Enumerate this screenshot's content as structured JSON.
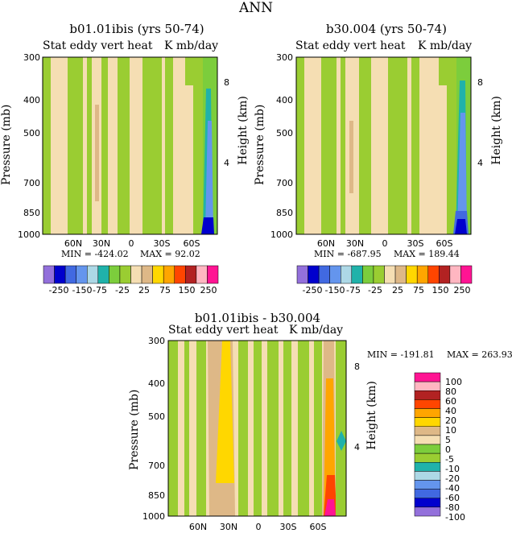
{
  "title": "ANN",
  "panels": [
    {
      "title": "b01.01ibis (yrs 50-74)",
      "subtitle_left": "Stat eddy vert heat",
      "subtitle_right": "K mb/day",
      "ylabel": "Pressure (mb)",
      "y2label": "Height (km)",
      "min_label": "MIN = -424.02",
      "max_label": "MAX = 92.02"
    },
    {
      "title": "b30.004 (yrs 50-74)",
      "subtitle_left": "Stat eddy vert heat",
      "subtitle_right": "K mb/day",
      "ylabel": "Pressure (mb)",
      "y2label": "Height (km)",
      "min_label": "MIN = -687.95",
      "max_label": "MAX = 189.44"
    },
    {
      "title": "b01.01ibis - b30.004",
      "subtitle_left": "Stat eddy vert heat",
      "subtitle_right": "K mb/day",
      "ylabel": "Pressure (mb)",
      "y2label": "Height (km)",
      "min_label": "MIN = -191.81",
      "max_label": "MAX = 263.93"
    }
  ],
  "chart_data": [
    {
      "type": "heatmap",
      "title": "b01.01ibis (yrs 50-74)",
      "subtitle": "Stat eddy vert heat K mb/day",
      "ylabel": "Pressure (mb)",
      "y2label": "Height (km)",
      "x_ticks": [
        "60N",
        "30N",
        "0",
        "30S",
        "60S"
      ],
      "y_ticks": [
        "300",
        "400",
        "500",
        "700",
        "850",
        "1000"
      ],
      "y2_ticks": [
        "8",
        "4"
      ],
      "min": -424.02,
      "max": 92.02,
      "colorbar": {
        "levels": [
          "-250",
          "-150",
          "-75",
          "-25",
          "25",
          "75",
          "150",
          "250"
        ],
        "colors": [
          "#9370db",
          "#0000cd",
          "#4169e1",
          "#6495ed",
          "#add8e6",
          "#20b2aa",
          "#7ccd3c",
          "#9acd32",
          "#f5deb3",
          "#deb887",
          "#ffd700",
          "#ffa500",
          "#ff4500",
          "#b22222",
          "#ffb6c1",
          "#ff1493"
        ]
      }
    },
    {
      "type": "heatmap",
      "title": "b30.004 (yrs 50-74)",
      "subtitle": "Stat eddy vert heat K mb/day",
      "ylabel": "Pressure (mb)",
      "y2label": "Height (km)",
      "x_ticks": [
        "60N",
        "30N",
        "0",
        "30S",
        "60S"
      ],
      "y_ticks": [
        "300",
        "400",
        "500",
        "700",
        "850",
        "1000"
      ],
      "y2_ticks": [
        "8",
        "4"
      ],
      "min": -687.95,
      "max": 189.44,
      "colorbar": {
        "levels": [
          "-250",
          "-150",
          "-75",
          "-25",
          "25",
          "75",
          "150",
          "250"
        ],
        "colors": [
          "#9370db",
          "#0000cd",
          "#4169e1",
          "#6495ed",
          "#add8e6",
          "#20b2aa",
          "#7ccd3c",
          "#9acd32",
          "#f5deb3",
          "#deb887",
          "#ffd700",
          "#ffa500",
          "#ff4500",
          "#b22222",
          "#ffb6c1",
          "#ff1493"
        ]
      }
    },
    {
      "type": "heatmap",
      "title": "b01.01ibis - b30.004",
      "subtitle": "Stat eddy vert heat K mb/day",
      "ylabel": "Pressure (mb)",
      "y2label": "Height (km)",
      "x_ticks": [
        "60N",
        "30N",
        "0",
        "30S",
        "60S"
      ],
      "y_ticks": [
        "300",
        "400",
        "500",
        "700",
        "850",
        "1000"
      ],
      "y2_ticks": [
        "8",
        "4"
      ],
      "min": -191.81,
      "max": 263.93,
      "colorbar": {
        "levels": [
          "100",
          "80",
          "60",
          "40",
          "20",
          "10",
          "5",
          "0",
          "-5",
          "-10",
          "-20",
          "-40",
          "-60",
          "-80",
          "-100"
        ],
        "colors": [
          "#ff1493",
          "#ffb6c1",
          "#b22222",
          "#ff4500",
          "#ffa500",
          "#ffd700",
          "#deb887",
          "#f5deb3",
          "#7ccd3c",
          "#9acd32",
          "#20b2aa",
          "#add8e6",
          "#6495ed",
          "#4169e1",
          "#0000cd",
          "#9370db"
        ]
      }
    }
  ]
}
